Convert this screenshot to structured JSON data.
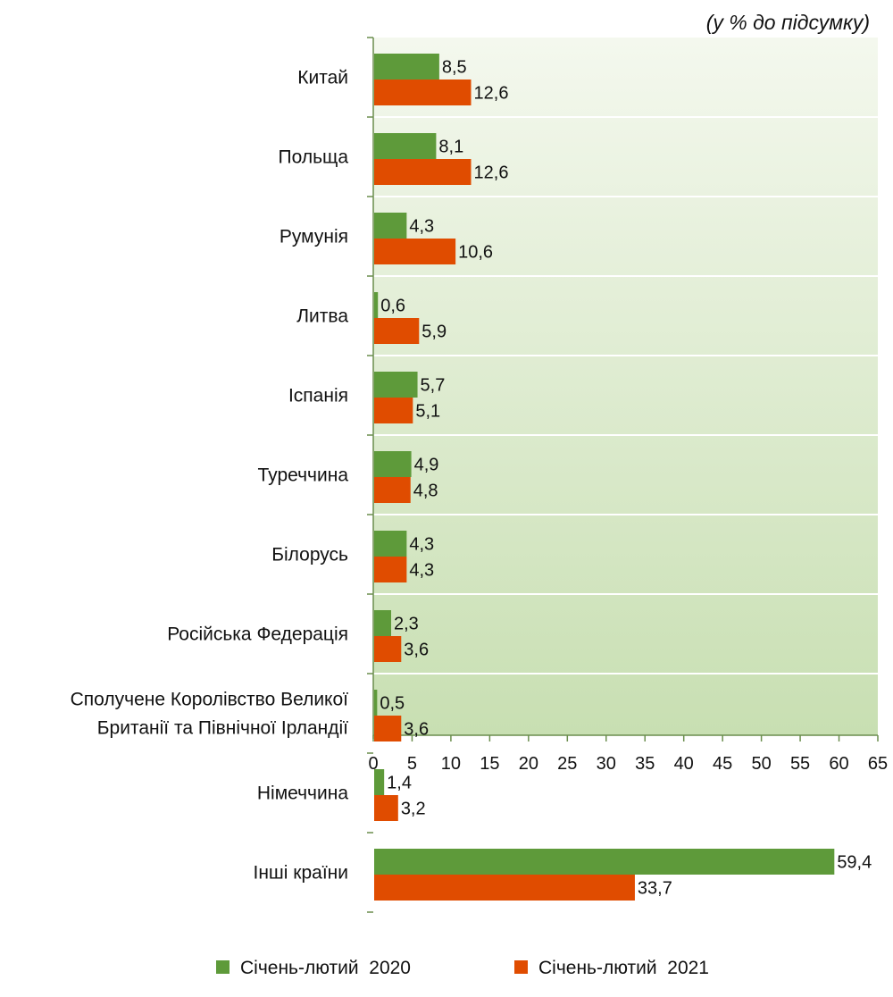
{
  "unit_note": "(у % до підсумку)",
  "colors": {
    "series_2020": "#5e9a3a",
    "series_2021": "#e04c00",
    "plot_bg_top": "#f4f8ee",
    "plot_bg_bottom": "#c8dfb2",
    "gridline": "#ffffff",
    "axis": "#6b8e4e"
  },
  "chart_data": {
    "type": "bar",
    "orientation": "horizontal",
    "title": "",
    "xlabel": "",
    "ylabel": "",
    "categories": [
      "Китай",
      "Польща",
      "Румунія",
      "Литва",
      "Іспанія",
      "Туреччина",
      "Білорусь",
      "Російська Федерація",
      "Сполучене Королівство Великої Британії та Північної Ірландії",
      "Німеччина",
      "Інші країни"
    ],
    "category_label_lines": [
      [
        "Китай"
      ],
      [
        "Польща"
      ],
      [
        "Румунія"
      ],
      [
        "Литва"
      ],
      [
        "Іспанія"
      ],
      [
        "Туреччина"
      ],
      [
        "Білорусь"
      ],
      [
        "Російська Федерація"
      ],
      [
        "Сполучене Королівство Великої",
        "Британії та Північної Ірландії"
      ],
      [
        "Німеччина"
      ],
      [
        "Інші країни"
      ]
    ],
    "series": [
      {
        "name": "Січень-лютий  2020",
        "values": [
          8.5,
          8.1,
          4.3,
          0.6,
          5.7,
          4.9,
          4.3,
          2.3,
          0.5,
          1.4,
          59.4
        ],
        "labels": [
          "8,5",
          "8,1",
          "4,3",
          "0,6",
          "5,7",
          "4,9",
          "4,3",
          "2,3",
          "0,5",
          "1,4",
          "59,4"
        ]
      },
      {
        "name": "Січень-лютий  2021",
        "values": [
          12.6,
          12.6,
          10.6,
          5.9,
          5.1,
          4.8,
          4.3,
          3.6,
          3.6,
          3.2,
          33.7
        ],
        "labels": [
          "12,6",
          "12,6",
          "10,6",
          "5,9",
          "5,1",
          "4,8",
          "4,3",
          "3,6",
          "3,6",
          "3,2",
          "33,7"
        ]
      }
    ],
    "xlim": [
      0,
      65
    ],
    "xticks": [
      0,
      5,
      10,
      15,
      20,
      25,
      30,
      35,
      40,
      45,
      50,
      55,
      60,
      65
    ],
    "xtick_labels": [
      "0",
      "5",
      "10",
      "15",
      "20",
      "25",
      "30",
      "35",
      "40",
      "45",
      "50",
      "55",
      "60",
      "65"
    ],
    "grid": "horizontal separators between categories",
    "legend_position": "bottom-center"
  }
}
